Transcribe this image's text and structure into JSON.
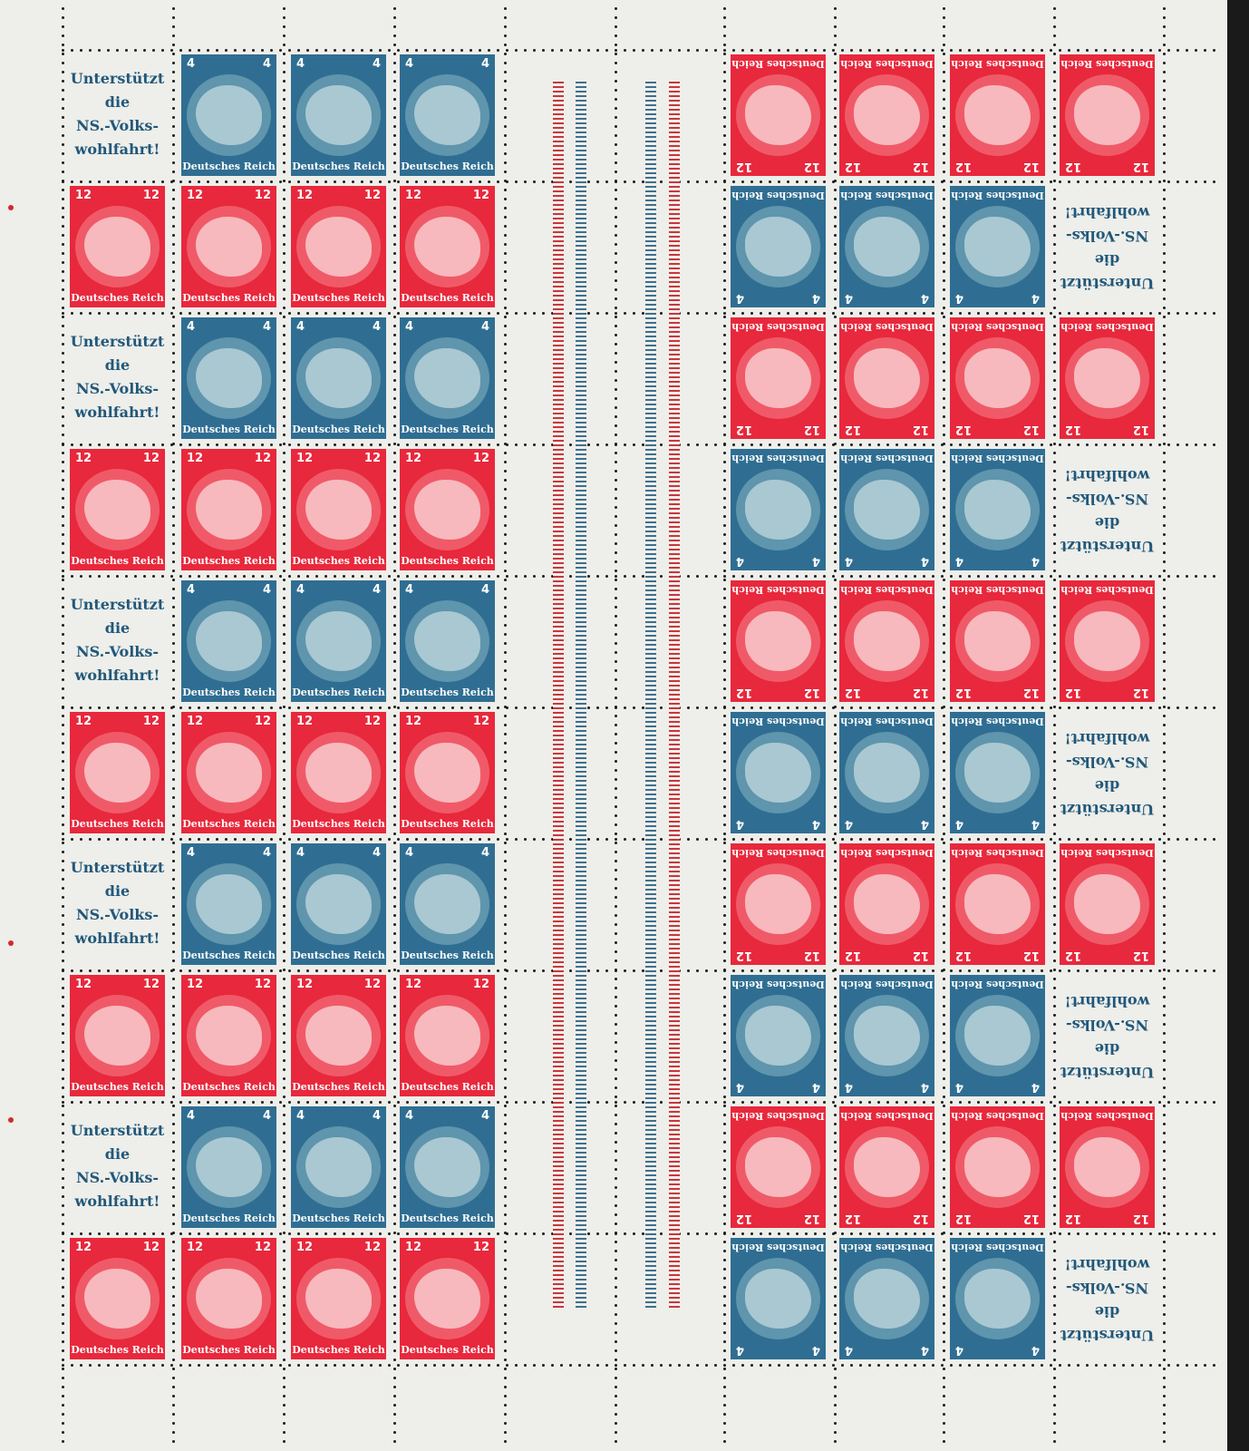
{
  "colors": {
    "paper": "#eeeeea",
    "red_stamp": "#e8283c",
    "blue_stamp": "#2f6e92",
    "label_text": "#21587a"
  },
  "stamps": {
    "blue_value": "4",
    "red_value": "12",
    "caption": "Deutsches Reich"
  },
  "label_lines": [
    "Unterstützt",
    "die",
    "NS.-Volks-",
    "wohlfahrt!"
  ],
  "left_block_rows": [
    [
      "label",
      "blue",
      "blue",
      "blue"
    ],
    [
      "red",
      "red",
      "red",
      "red"
    ],
    [
      "label",
      "blue",
      "blue",
      "blue"
    ],
    [
      "red",
      "red",
      "red",
      "red"
    ],
    [
      "label",
      "blue",
      "blue",
      "blue"
    ],
    [
      "red",
      "red",
      "red",
      "red"
    ],
    [
      "label",
      "blue",
      "blue",
      "blue"
    ],
    [
      "red",
      "red",
      "red",
      "red"
    ],
    [
      "label",
      "blue",
      "blue",
      "blue"
    ],
    [
      "red",
      "red",
      "red",
      "red"
    ]
  ],
  "right_block_rows": [
    [
      "red",
      "red",
      "red",
      "red"
    ],
    [
      "blue",
      "blue",
      "blue",
      "label"
    ],
    [
      "red",
      "red",
      "red",
      "red"
    ],
    [
      "blue",
      "blue",
      "blue",
      "label"
    ],
    [
      "red",
      "red",
      "red",
      "red"
    ],
    [
      "blue",
      "blue",
      "blue",
      "label"
    ],
    [
      "red",
      "red",
      "red",
      "red"
    ],
    [
      "blue",
      "blue",
      "blue",
      "label"
    ],
    [
      "red",
      "red",
      "red",
      "red"
    ],
    [
      "blue",
      "blue",
      "blue",
      "label"
    ]
  ],
  "right_block_inverted": true,
  "gutter_lines": [
    "red",
    "blue",
    "blue",
    "red"
  ]
}
